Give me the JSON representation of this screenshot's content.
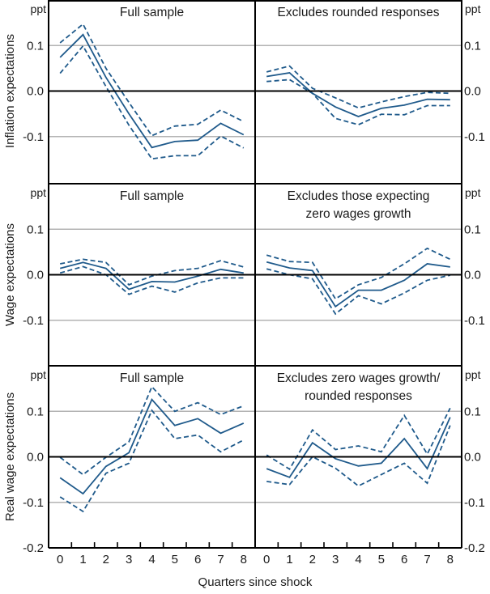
{
  "chart_data": {
    "type": "line",
    "x": [
      0,
      1,
      2,
      3,
      4,
      5,
      6,
      7,
      8
    ],
    "x_tick_labels": [
      "0",
      "1",
      "2",
      "3",
      "4",
      "5",
      "6",
      "7",
      "8"
    ],
    "xlabel": "Quarters since shock",
    "unit": "ppt",
    "ylim": [
      -0.2,
      0.2
    ],
    "y_ticks": [
      {
        "value": 0.1,
        "label": "0.1"
      },
      {
        "value": 0.0,
        "label": "0.0"
      },
      {
        "value": -0.1,
        "label": "-0.1"
      }
    ],
    "bottom_tick": {
      "value": -0.2,
      "label": "-0.2"
    },
    "grid": true,
    "colors": {
      "series": "#1f5a8b",
      "grid": "#b3b3b3",
      "axis": "#000000"
    },
    "line_styles": {
      "estimate": "solid",
      "upper_bound": "dashed",
      "lower_bound": "dashed"
    },
    "rows": [
      {
        "ylabel": "Inflation expectations",
        "panels": [
          {
            "title": [
              "Full sample"
            ],
            "series": [
              {
                "name": "estimate",
                "values": [
                  0.074,
                  0.124,
                  0.03,
                  -0.05,
                  -0.124,
                  -0.111,
                  -0.108,
                  -0.071,
                  -0.096
                ]
              },
              {
                "name": "upper_bound",
                "values": [
                  0.106,
                  0.147,
                  0.05,
                  -0.025,
                  -0.098,
                  -0.077,
                  -0.073,
                  -0.042,
                  -0.067
                ]
              },
              {
                "name": "lower_bound",
                "values": [
                  0.039,
                  0.099,
                  0.01,
                  -0.075,
                  -0.149,
                  -0.142,
                  -0.142,
                  -0.099,
                  -0.125
                ]
              }
            ]
          },
          {
            "title": [
              "Excludes rounded responses"
            ],
            "series": [
              {
                "name": "estimate",
                "values": [
                  0.032,
                  0.04,
                  -0.005,
                  -0.035,
                  -0.056,
                  -0.038,
                  -0.031,
                  -0.018,
                  -0.019
                ]
              },
              {
                "name": "upper_bound",
                "values": [
                  0.042,
                  0.055,
                  0.006,
                  -0.015,
                  -0.037,
                  -0.024,
                  -0.012,
                  -0.003,
                  -0.005
                ]
              },
              {
                "name": "lower_bound",
                "values": [
                  0.021,
                  0.025,
                  -0.005,
                  -0.06,
                  -0.074,
                  -0.051,
                  -0.052,
                  -0.032,
                  -0.032
                ]
              }
            ]
          }
        ]
      },
      {
        "ylabel": "Wage expectations",
        "panels": [
          {
            "title": [
              "Full sample"
            ],
            "series": [
              {
                "name": "estimate",
                "values": [
                  0.014,
                  0.027,
                  0.014,
                  -0.032,
                  -0.015,
                  -0.016,
                  -0.003,
                  0.012,
                  0.004
                ]
              },
              {
                "name": "upper_bound",
                "values": [
                  0.024,
                  0.034,
                  0.027,
                  -0.022,
                  -0.003,
                  0.009,
                  0.014,
                  0.031,
                  0.017
                ]
              },
              {
                "name": "lower_bound",
                "values": [
                  0.004,
                  0.018,
                  0.0,
                  -0.043,
                  -0.025,
                  -0.038,
                  -0.018,
                  -0.007,
                  -0.007
                ]
              }
            ]
          },
          {
            "title": [
              "Excludes those expecting",
              "zero wages growth"
            ],
            "series": [
              {
                "name": "estimate",
                "values": [
                  0.028,
                  0.015,
                  0.009,
                  -0.07,
                  -0.034,
                  -0.034,
                  -0.012,
                  0.024,
                  0.017
                ]
              },
              {
                "name": "upper_bound",
                "values": [
                  0.043,
                  0.029,
                  0.027,
                  -0.053,
                  -0.022,
                  -0.006,
                  0.024,
                  0.058,
                  0.034
                ]
              },
              {
                "name": "lower_bound",
                "values": [
                  0.013,
                  0.0,
                  -0.009,
                  -0.086,
                  -0.046,
                  -0.064,
                  -0.04,
                  -0.012,
                  -0.001
                ]
              }
            ]
          }
        ]
      },
      {
        "ylabel": "Real wage expectations",
        "panels": [
          {
            "title": [
              "Full sample"
            ],
            "series": [
              {
                "name": "estimate",
                "values": [
                  -0.046,
                  -0.081,
                  -0.021,
                  0.009,
                  0.126,
                  0.069,
                  0.084,
                  0.052,
                  0.074
                ]
              },
              {
                "name": "upper_bound",
                "values": [
                  -0.001,
                  -0.039,
                  -0.001,
                  0.033,
                  0.154,
                  0.1,
                  0.119,
                  0.093,
                  0.112
                ]
              },
              {
                "name": "lower_bound",
                "values": [
                  -0.088,
                  -0.12,
                  -0.036,
                  -0.014,
                  0.102,
                  0.04,
                  0.048,
                  0.011,
                  0.037
                ]
              }
            ]
          },
          {
            "title": [
              "Excludes zero wages growth/",
              "rounded responses"
            ],
            "series": [
              {
                "name": "estimate",
                "values": [
                  -0.026,
                  -0.045,
                  0.031,
                  -0.004,
                  -0.02,
                  -0.014,
                  0.04,
                  -0.026,
                  0.087
                ]
              },
              {
                "name": "upper_bound",
                "values": [
                  0.004,
                  -0.027,
                  0.059,
                  0.016,
                  0.024,
                  0.011,
                  0.091,
                  0.006,
                  0.107
                ]
              },
              {
                "name": "lower_bound",
                "values": [
                  -0.054,
                  -0.061,
                  0.0,
                  -0.025,
                  -0.064,
                  -0.039,
                  -0.014,
                  -0.058,
                  0.069
                ]
              }
            ]
          }
        ]
      }
    ]
  }
}
